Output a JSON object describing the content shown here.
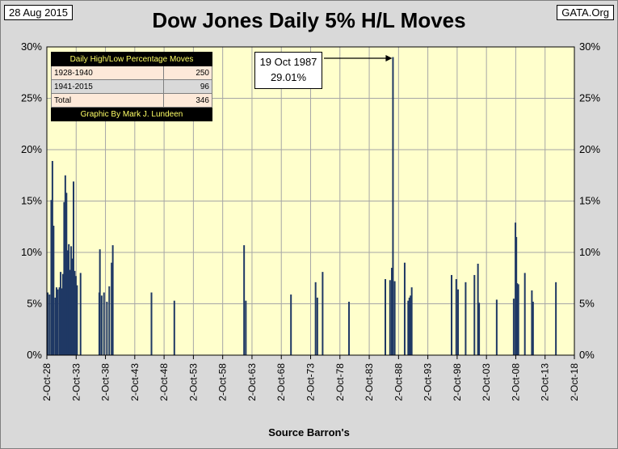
{
  "header": {
    "date": "28 Aug 2015",
    "site": "GATA.Org",
    "title": "Dow Jones Daily 5% H/L Moves"
  },
  "footer": {
    "source": "Source Barron's"
  },
  "legend": {
    "title": "Daily High/Low Percentage Moves",
    "rows": [
      {
        "period": "1928-1940",
        "count": "250"
      },
      {
        "period": "1941-2015",
        "count": "96"
      },
      {
        "period": "Total",
        "count": "346"
      }
    ],
    "credit": "Graphic By Mark J. Lundeen"
  },
  "annotation": {
    "date": "19 Oct 1987",
    "value": "29.01%"
  },
  "colors": {
    "plot_bg": "#ffffcc",
    "bar": "#1f3864",
    "grid": "#a6a6a6",
    "page_bg": "#d9d9d9"
  },
  "chart_data": {
    "type": "bar",
    "title": "Dow Jones Daily 5% H/L Moves",
    "xlabel": "Source Barron's",
    "ylabel": "",
    "ylim": [
      0,
      30
    ],
    "y_ticks": [
      "0%",
      "5%",
      "10%",
      "15%",
      "20%",
      "25%",
      "30%"
    ],
    "x_range": [
      1928.75,
      2018.75
    ],
    "x_tick_labels": [
      "2-Oct-28",
      "2-Oct-33",
      "2-Oct-38",
      "2-Oct-43",
      "2-Oct-48",
      "2-Oct-53",
      "2-Oct-58",
      "2-Oct-63",
      "2-Oct-68",
      "2-Oct-73",
      "2-Oct-78",
      "2-Oct-83",
      "2-Oct-88",
      "2-Oct-93",
      "2-Oct-98",
      "2-Oct-03",
      "2-Oct-08",
      "2-Oct-13",
      "2-Oct-18"
    ],
    "grid": true,
    "series": [
      {
        "name": "Daily High/Low % Move",
        "points": [
          {
            "x": 1928.9,
            "y": 6.1
          },
          {
            "x": 1929.2,
            "y": 5.9
          },
          {
            "x": 1929.5,
            "y": 15.1
          },
          {
            "x": 1929.7,
            "y": 18.9
          },
          {
            "x": 1929.9,
            "y": 12.6
          },
          {
            "x": 1930.2,
            "y": 5.6
          },
          {
            "x": 1930.4,
            "y": 6.6
          },
          {
            "x": 1930.6,
            "y": 6.4
          },
          {
            "x": 1930.9,
            "y": 6.6
          },
          {
            "x": 1931.1,
            "y": 8.1
          },
          {
            "x": 1931.3,
            "y": 6.5
          },
          {
            "x": 1931.5,
            "y": 7.9
          },
          {
            "x": 1931.7,
            "y": 14.9
          },
          {
            "x": 1931.9,
            "y": 17.5
          },
          {
            "x": 1932.1,
            "y": 15.8
          },
          {
            "x": 1932.3,
            "y": 10.2
          },
          {
            "x": 1932.5,
            "y": 10.8
          },
          {
            "x": 1932.7,
            "y": 8.3
          },
          {
            "x": 1932.9,
            "y": 10.6
          },
          {
            "x": 1933.1,
            "y": 9.4
          },
          {
            "x": 1933.3,
            "y": 16.9
          },
          {
            "x": 1933.5,
            "y": 8.2
          },
          {
            "x": 1933.7,
            "y": 7.7
          },
          {
            "x": 1933.9,
            "y": 6.8
          },
          {
            "x": 1934.5,
            "y": 8.0
          },
          {
            "x": 1937.7,
            "y": 6.1
          },
          {
            "x": 1937.8,
            "y": 10.3
          },
          {
            "x": 1938.1,
            "y": 5.8
          },
          {
            "x": 1938.5,
            "y": 6.1
          },
          {
            "x": 1939.0,
            "y": 5.2
          },
          {
            "x": 1939.4,
            "y": 6.7
          },
          {
            "x": 1939.8,
            "y": 9.0
          },
          {
            "x": 1940.0,
            "y": 10.7
          },
          {
            "x": 1946.6,
            "y": 6.1
          },
          {
            "x": 1950.5,
            "y": 5.3
          },
          {
            "x": 1962.4,
            "y": 10.7
          },
          {
            "x": 1962.7,
            "y": 5.3
          },
          {
            "x": 1970.4,
            "y": 5.9
          },
          {
            "x": 1974.6,
            "y": 7.1
          },
          {
            "x": 1974.9,
            "y": 5.6
          },
          {
            "x": 1975.8,
            "y": 8.1
          },
          {
            "x": 1980.3,
            "y": 5.2
          },
          {
            "x": 1986.5,
            "y": 7.4
          },
          {
            "x": 1987.3,
            "y": 7.3
          },
          {
            "x": 1987.6,
            "y": 8.5
          },
          {
            "x": 1987.8,
            "y": 29.01
          },
          {
            "x": 1988.1,
            "y": 7.2
          },
          {
            "x": 1989.8,
            "y": 9.0
          },
          {
            "x": 1990.4,
            "y": 5.3
          },
          {
            "x": 1990.6,
            "y": 5.6
          },
          {
            "x": 1990.8,
            "y": 5.8
          },
          {
            "x": 1991.0,
            "y": 6.6
          },
          {
            "x": 1997.8,
            "y": 7.8
          },
          {
            "x": 1998.6,
            "y": 7.4
          },
          {
            "x": 1998.9,
            "y": 6.4
          },
          {
            "x": 2000.2,
            "y": 7.1
          },
          {
            "x": 2001.7,
            "y": 7.8
          },
          {
            "x": 2002.3,
            "y": 8.9
          },
          {
            "x": 2002.5,
            "y": 5.1
          },
          {
            "x": 2005.5,
            "y": 5.4
          },
          {
            "x": 2008.4,
            "y": 5.5
          },
          {
            "x": 2008.7,
            "y": 12.9
          },
          {
            "x": 2008.85,
            "y": 11.5
          },
          {
            "x": 2009.0,
            "y": 7.0
          },
          {
            "x": 2009.2,
            "y": 6.9
          },
          {
            "x": 2010.3,
            "y": 8.0
          },
          {
            "x": 2011.5,
            "y": 6.3
          },
          {
            "x": 2011.7,
            "y": 5.2
          },
          {
            "x": 2015.6,
            "y": 7.1
          }
        ]
      }
    ]
  }
}
